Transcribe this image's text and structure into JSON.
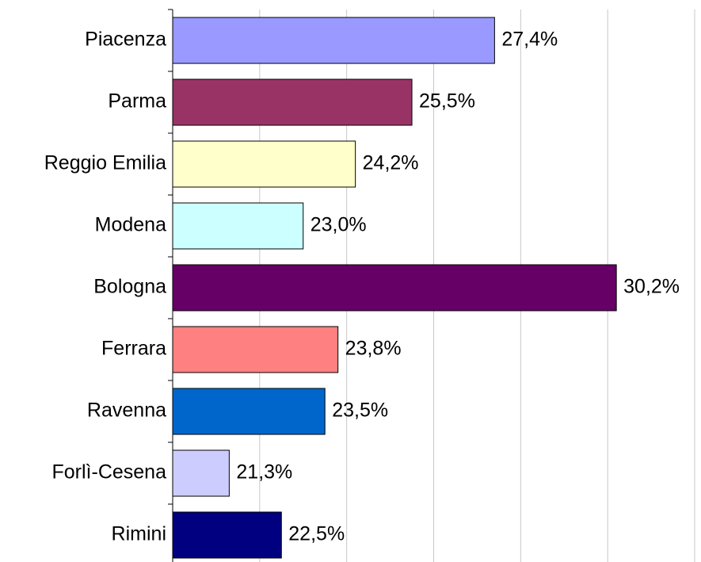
{
  "chart_data": {
    "type": "barh",
    "categories": [
      "Piacenza",
      "Parma",
      "Reggio Emilia",
      "Modena",
      "Bologna",
      "Ferrara",
      "Ravenna",
      "Forlì-Cesena",
      "Rimini"
    ],
    "values": [
      27.4,
      25.5,
      24.2,
      23.0,
      30.2,
      23.8,
      23.5,
      21.3,
      22.5
    ],
    "value_labels": [
      "27,4%",
      "25,5%",
      "24,2%",
      "23,0%",
      "30,2%",
      "23,8%",
      "23,5%",
      "21,3%",
      "22,5%"
    ],
    "colors": [
      "#9999ff",
      "#993366",
      "#ffffcc",
      "#ccffff",
      "#660066",
      "#ff8080",
      "#0066cc",
      "#ccccff",
      "#000080"
    ],
    "xlim": [
      20,
      32
    ],
    "xticks": [
      20,
      22,
      24,
      26,
      28,
      30,
      32
    ],
    "grid": true
  }
}
